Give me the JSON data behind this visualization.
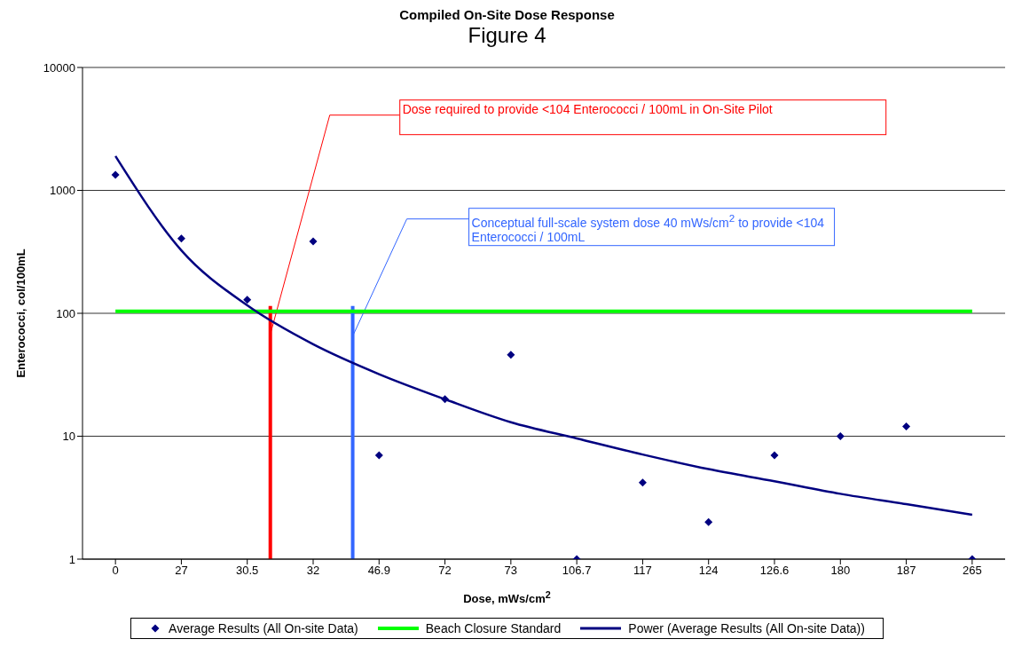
{
  "chart_data": {
    "type": "line",
    "title": "Compiled On-Site Dose Response",
    "subtitle": "Figure 4",
    "xlabel": "Dose, mWs/cm$^{2}$",
    "ylabel": "Enterococci, col/100mL",
    "categories": [
      "0",
      "27",
      "30.5",
      "32",
      "46.9",
      "72",
      "73",
      "106.7",
      "117",
      "124",
      "126.6",
      "180",
      "187",
      "265"
    ],
    "log": "y",
    "ylim": [
      1,
      10000
    ],
    "yticks": [
      1,
      10,
      100,
      1000,
      10000
    ],
    "grid": "y",
    "legend": "bottom",
    "series": [
      {
        "name": "Average Results (All On-site Data)",
        "type": "scatter",
        "marker": "diamond",
        "color": "#000080",
        "values": [
          1340,
          405,
          129,
          384,
          7,
          20,
          46,
          1,
          4.2,
          2,
          7,
          10,
          12,
          1
        ]
      },
      {
        "name": "Beach Closure Standard",
        "color": "#00ff00",
        "values": [
          104,
          104,
          104,
          104,
          104,
          104,
          104,
          104,
          104,
          104,
          104,
          104,
          104,
          104
        ]
      },
      {
        "name": "Power (Average Results (All On-site Data))",
        "color": "#000080",
        "values": [
          1900,
          325,
          116,
          56,
          32,
          20,
          13,
          9.6,
          7.1,
          5.4,
          4.3,
          3.4,
          2.8,
          2.3
        ]
      }
    ],
    "annotations": [
      "Dose required to provide <104 Enterococci / 100mL in On-Site Pilot",
      "Conceptual full-scale system dose 40 mWs/cm$^{2}$ to provide <104 Enterococci / 100mL"
    ]
  }
}
